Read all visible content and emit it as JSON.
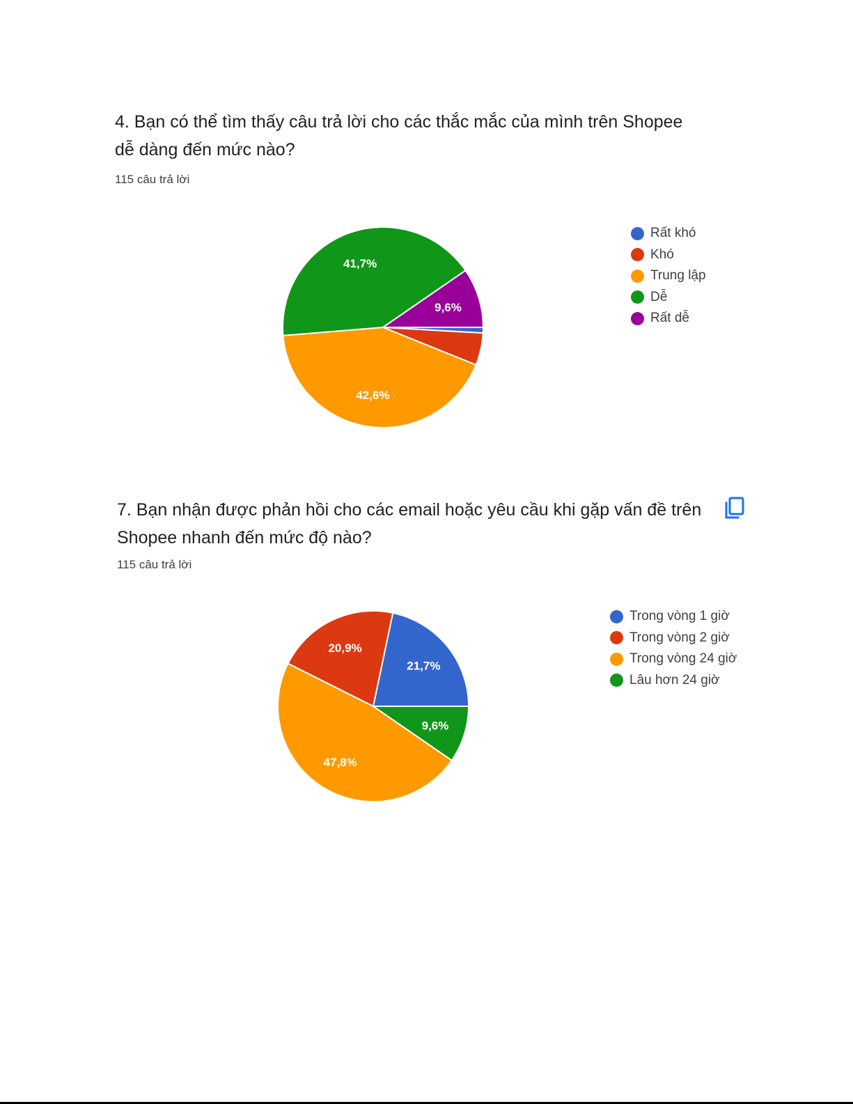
{
  "questions": [
    {
      "title_line1": "4. Bạn có thể tìm thấy câu trả lời cho các thắc mắc của mình trên Shopee",
      "title_line2": "dễ dàng đến mức nào?",
      "responses": "115 câu trả lời",
      "has_copy_icon": false
    },
    {
      "title_line1": "7. Bạn nhận được phản hồi cho các email hoặc yêu cầu khi gặp vấn đề trên",
      "title_line2": "Shopee nhanh đến mức độ nào?",
      "responses": "115 câu trả lời",
      "has_copy_icon": true,
      "copy_icon": "copy-icon"
    }
  ],
  "chart_data": [
    {
      "type": "pie",
      "title": "",
      "legend_position": "right",
      "series": [
        {
          "name": "Rất khó",
          "value": 0.9,
          "label": "",
          "color": "#3366cc"
        },
        {
          "name": "Khó",
          "value": 5.2,
          "label": "",
          "color": "#dc3912"
        },
        {
          "name": "Trung lập",
          "value": 42.6,
          "label": "42,6%",
          "color": "#ff9900"
        },
        {
          "name": "Dễ",
          "value": 41.7,
          "label": "41,7%",
          "color": "#109618"
        },
        {
          "name": "Rất dễ",
          "value": 9.6,
          "label": "9,6%",
          "color": "#990099"
        }
      ]
    },
    {
      "type": "pie",
      "title": "",
      "legend_position": "right",
      "series": [
        {
          "name": "Trong vòng 1 giờ",
          "value": 21.7,
          "label": "21,7%",
          "color": "#3366cc"
        },
        {
          "name": "Trong vòng 2 giờ",
          "value": 20.9,
          "label": "20,9%",
          "color": "#dc3912"
        },
        {
          "name": "Trong vòng 24 giờ",
          "value": 47.8,
          "label": "47,8%",
          "color": "#ff9900"
        },
        {
          "name": "Lâu hơn 24 giờ",
          "value": 9.6,
          "label": "9,6%",
          "color": "#109618"
        }
      ]
    }
  ]
}
